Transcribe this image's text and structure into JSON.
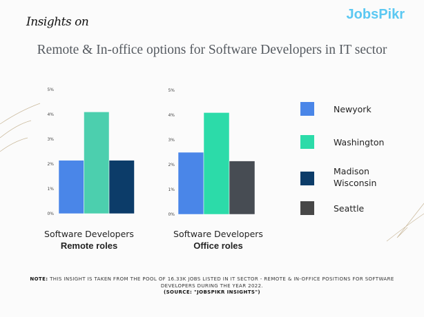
{
  "header": {
    "insights_label": "Insights on",
    "logo": "JobsPikr",
    "title": "Remote & In-office options for Software Developers in IT sector"
  },
  "chart_data": [
    {
      "type": "bar",
      "title": "Software Developers",
      "subtitle": "Remote roles",
      "categories": [
        "Newyork",
        "Washington",
        "Madison Wisconsin"
      ],
      "values": [
        2.15,
        4.1,
        2.15
      ],
      "colors": [
        "#4a86e8",
        "#4ccfae",
        "#0c3c69"
      ],
      "ylim": [
        0,
        5
      ],
      "yticks": [
        "0%",
        "1%",
        "2%",
        "3%",
        "4%",
        "5%"
      ],
      "grid": false
    },
    {
      "type": "bar",
      "title": "Software Developers",
      "subtitle": "Office roles",
      "categories": [
        "Newyork",
        "Washington",
        "Seattle"
      ],
      "values": [
        2.5,
        4.1,
        2.15
      ],
      "colors": [
        "#4a86e8",
        "#2cdba9",
        "#474c53"
      ],
      "ylim": [
        0,
        5
      ],
      "yticks": [
        "0%",
        "1%",
        "2%",
        "3%",
        "4%",
        "5%"
      ],
      "grid": false
    }
  ],
  "legend": [
    {
      "label": "Newyork",
      "color": "#4a86e8"
    },
    {
      "label": "Washington",
      "color": "#2cdba9"
    },
    {
      "label": "Madison Wisconsin",
      "line1": "Madison",
      "line2": "Wisconsin",
      "color": "#0c3c69"
    },
    {
      "label": "Seattle",
      "color": "#474747"
    }
  ],
  "note": {
    "prefix": "NOTE:",
    "text": " THIS INSIGHT IS TAKEN FROM THE POOL OF 16.33K JOBS LISTED IN  IT SECTOR - REMOTE & IN-OFFICE POSITIONS FOR SOFTWARE DEVELOPERS  DURING THE YEAR 2022.",
    "source": "(SOURCE: \"JOBSPIKR INSIGHTS\")"
  }
}
